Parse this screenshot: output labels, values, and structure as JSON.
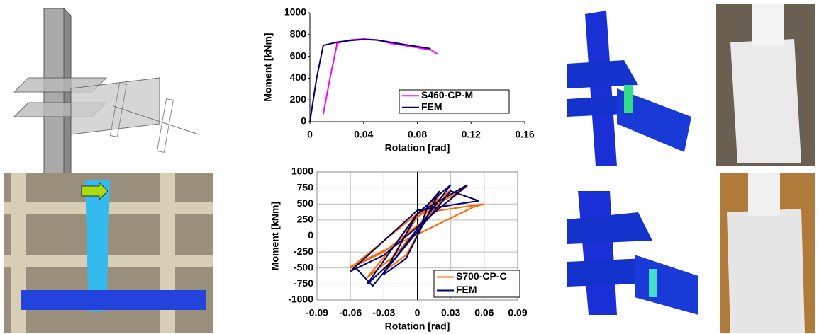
{
  "chart_data": [
    {
      "type": "line",
      "x_label": "Rotation [rad]",
      "y_label": "Moment [kNm]",
      "xlim": [
        0,
        0.16
      ],
      "xticks": [
        0,
        0.04,
        0.08,
        0.12,
        0.16
      ],
      "ylim": [
        0,
        1000
      ],
      "yticks": [
        0,
        200,
        400,
        600,
        800,
        1000
      ],
      "grid": false,
      "series": [
        {
          "name": "S460-CP-M",
          "color": "#ff00ff",
          "x": [
            0.01,
            0.015,
            0.02,
            0.02,
            0.03,
            0.04,
            0.05,
            0.06,
            0.07,
            0.08,
            0.09,
            0.095
          ],
          "values": [
            70,
            400,
            700,
            720,
            750,
            760,
            750,
            720,
            700,
            680,
            660,
            620
          ]
        },
        {
          "name": "FEM",
          "color": "#000066",
          "x": [
            0,
            0.005,
            0.01,
            0.02,
            0.03,
            0.04,
            0.05,
            0.06,
            0.07,
            0.08,
            0.09
          ],
          "values": [
            0,
            400,
            700,
            730,
            745,
            755,
            750,
            730,
            710,
            690,
            670
          ]
        }
      ]
    },
    {
      "type": "line",
      "x_label": "Rotation [rad]",
      "y_label": "Moment [kNm]",
      "xlim": [
        -0.09,
        0.09
      ],
      "xticks": [
        -0.09,
        -0.06,
        -0.03,
        0,
        0.03,
        0.06,
        0.09
      ],
      "ylim": [
        -1000,
        1000
      ],
      "yticks": [
        -1000,
        -750,
        -500,
        -250,
        0,
        250,
        500,
        750,
        1000
      ],
      "grid": true,
      "series": [
        {
          "name": "S700-CP-C",
          "color": "#ff6600",
          "x": [
            0,
            0.01,
            0.02,
            -0.01,
            -0.03,
            0.0,
            0.03,
            -0.02,
            -0.045,
            0.0,
            0.045,
            -0.03,
            -0.06,
            0.0,
            0.06,
            0.05,
            -0.05,
            -0.06
          ],
          "values": [
            0,
            450,
            650,
            -300,
            -550,
            300,
            720,
            -300,
            -650,
            300,
            780,
            -250,
            -500,
            350,
            500,
            450,
            -400,
            -480
          ]
        },
        {
          "name": "FEM",
          "color": "#000066",
          "x": [
            0,
            0.01,
            0.02,
            -0.01,
            -0.03,
            0.0,
            0.03,
            -0.02,
            -0.045,
            0.0,
            0.045,
            -0.03,
            -0.06,
            0.0,
            0.055,
            0.03,
            -0.04,
            -0.055
          ],
          "values": [
            0,
            500,
            700,
            -350,
            -600,
            350,
            800,
            -350,
            -750,
            350,
            800,
            -300,
            -550,
            400,
            550,
            700,
            -780,
            -500
          ]
        }
      ]
    }
  ]
}
